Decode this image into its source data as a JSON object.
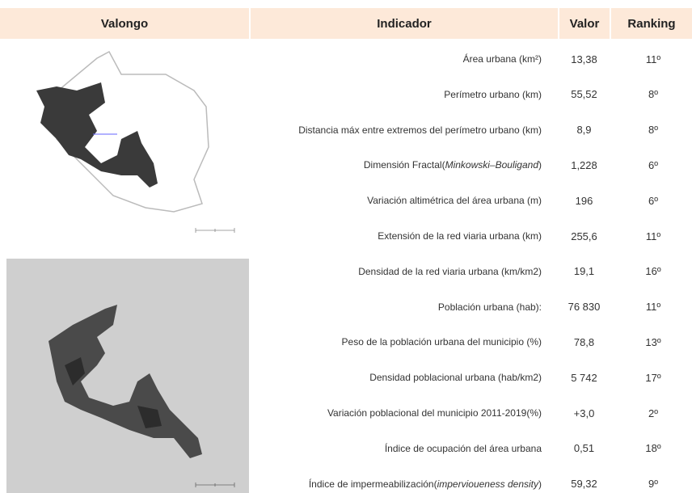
{
  "header": {
    "place": "Valongo",
    "indicator": "Indicador",
    "value": "Valor",
    "ranking": "Ranking"
  },
  "table": {
    "rows": [
      {
        "indicator": [
          "Área urbana (km²)"
        ],
        "value": "13,38",
        "ranking": "11º"
      },
      {
        "indicator": [
          "Perímetro urbano (km)"
        ],
        "value": "55,52",
        "ranking": "8º"
      },
      {
        "indicator": [
          "Distancia máx entre extremos del perímetro urbano (km)"
        ],
        "value": "8,9",
        "ranking": "8º"
      },
      {
        "indicator": [
          "Dimensión Fractal(",
          {
            "italic": "Minkowski–Bouligand"
          },
          ")"
        ],
        "value": "1,228",
        "ranking": "6º"
      },
      {
        "indicator": [
          "Variación altimétrica del área urbana (m)"
        ],
        "value": "196",
        "ranking": "6º"
      },
      {
        "indicator": [
          "Extensión de la red viaria urbana (km)"
        ],
        "value": "255,6",
        "ranking": "11º"
      },
      {
        "indicator": [
          "Densidad de la red viaria urbana (km/km2)"
        ],
        "value": "19,1",
        "ranking": "16º"
      },
      {
        "indicator": [
          "Población urbana (hab):"
        ],
        "value": "76 830",
        "ranking": "11º"
      },
      {
        "indicator": [
          "Peso de la población urbana del municipio (%)"
        ],
        "value": "78,8",
        "ranking": "13º"
      },
      {
        "indicator": [
          "Densidad poblacional urbana (hab/km2)"
        ],
        "value": "5 742",
        "ranking": "17º"
      },
      {
        "indicator": [
          "Variación poblacional del municipio 2011-2019(%)"
        ],
        "value": "+3,0",
        "ranking": "2º"
      },
      {
        "indicator": [
          "Índice de ocupación del área urbana"
        ],
        "value": "0,51",
        "ranking": "18º"
      },
      {
        "indicator": [
          "Índice de impermeabilización(",
          {
            "italic": "impervioueness density"
          },
          ")"
        ],
        "value": "59,32",
        "ranking": "9º"
      }
    ]
  }
}
